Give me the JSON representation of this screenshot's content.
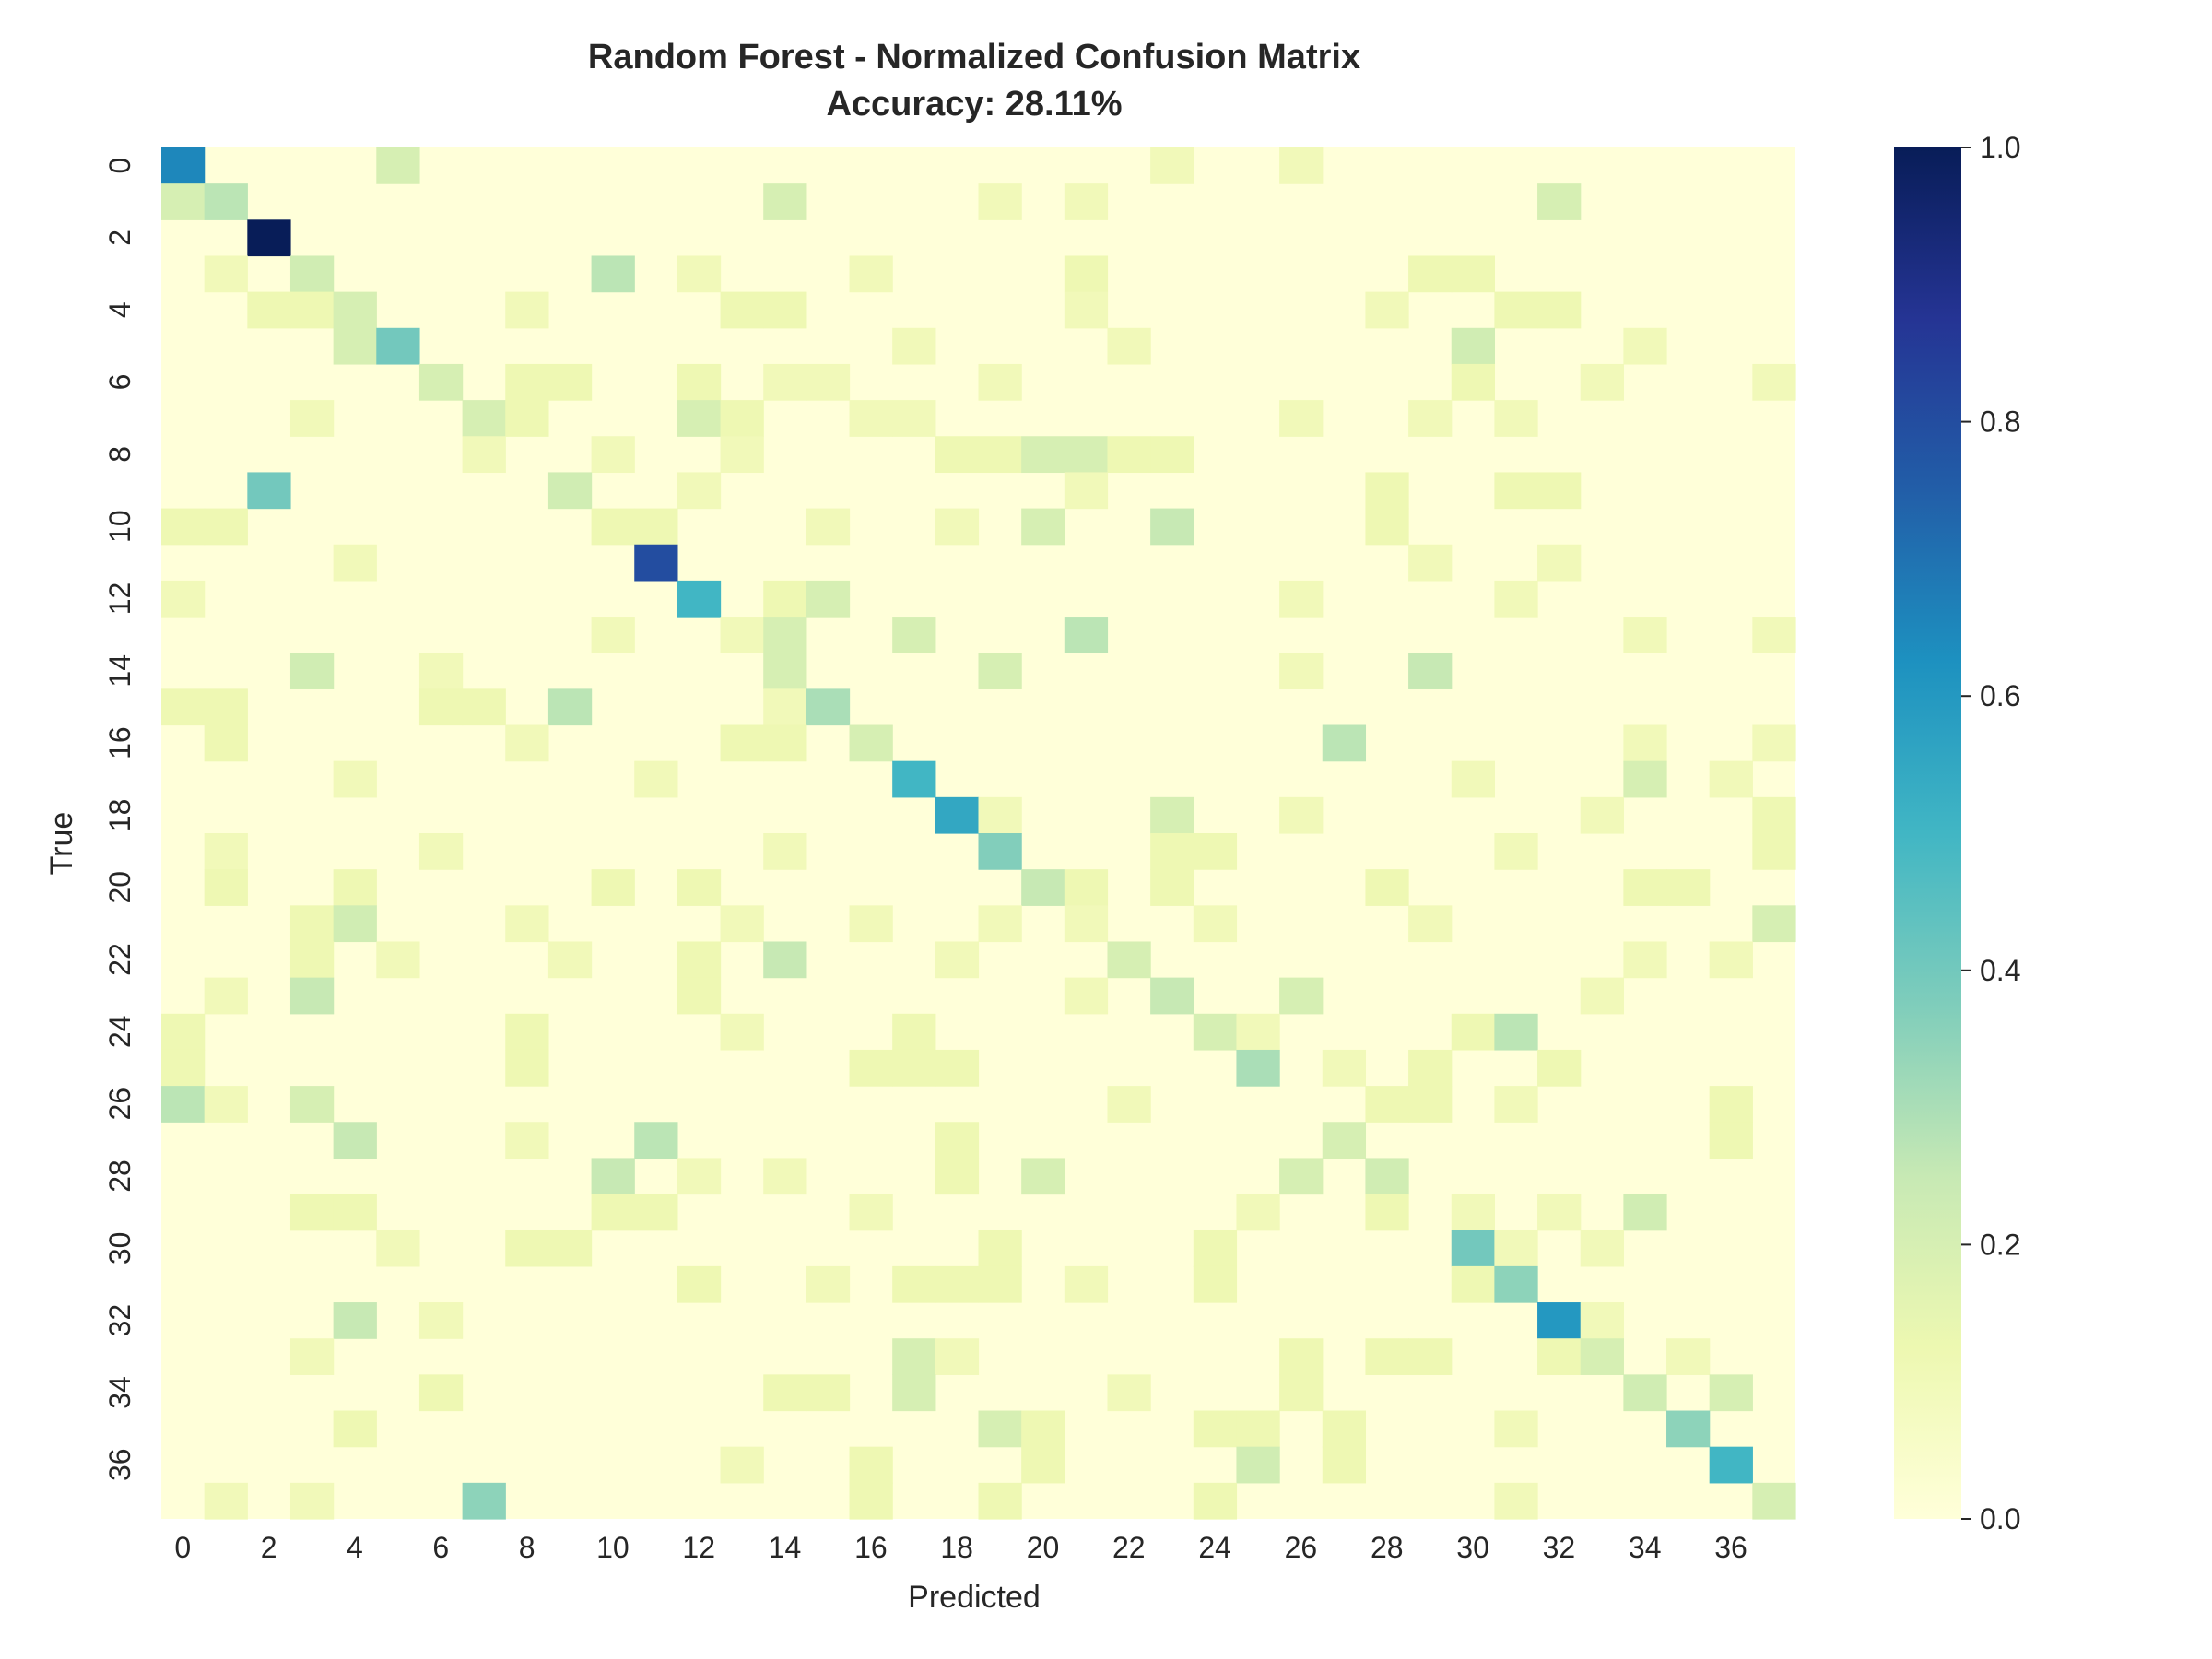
{
  "chart_data": {
    "type": "heatmap",
    "title": "Random Forest - Normalized Confusion Matrix",
    "subtitle": "Accuracy: 28.11%",
    "xlabel": "Predicted",
    "ylabel": "True",
    "n_classes": 38,
    "x_tick_labels": [
      "0",
      "2",
      "4",
      "6",
      "8",
      "10",
      "12",
      "14",
      "16",
      "18",
      "20",
      "22",
      "24",
      "26",
      "28",
      "30",
      "32",
      "34",
      "36"
    ],
    "y_tick_labels": [
      "0",
      "2",
      "4",
      "6",
      "8",
      "10",
      "12",
      "14",
      "16",
      "18",
      "20",
      "22",
      "24",
      "26",
      "28",
      "30",
      "32",
      "34",
      "36"
    ],
    "colorbar": {
      "min": 0.0,
      "max": 1.0,
      "ticks": [
        "0.0",
        "0.2",
        "0.4",
        "0.6",
        "0.8",
        "1.0"
      ],
      "colormap": "YlGnBu"
    },
    "cells": [
      [
        0,
        0,
        0.65
      ],
      [
        0,
        5,
        0.2
      ],
      [
        0,
        23,
        0.1
      ],
      [
        0,
        26,
        0.1
      ],
      [
        1,
        0,
        0.2
      ],
      [
        1,
        1,
        0.27
      ],
      [
        1,
        14,
        0.2
      ],
      [
        1,
        19,
        0.1
      ],
      [
        1,
        21,
        0.1
      ],
      [
        1,
        32,
        0.2
      ],
      [
        2,
        2,
        1.0
      ],
      [
        3,
        1,
        0.1
      ],
      [
        3,
        3,
        0.22
      ],
      [
        3,
        10,
        0.27
      ],
      [
        3,
        12,
        0.1
      ],
      [
        3,
        16,
        0.1
      ],
      [
        3,
        21,
        0.12
      ],
      [
        3,
        29,
        0.12
      ],
      [
        3,
        30,
        0.12
      ],
      [
        4,
        2,
        0.12
      ],
      [
        4,
        3,
        0.12
      ],
      [
        4,
        4,
        0.2
      ],
      [
        4,
        8,
        0.1
      ],
      [
        4,
        13,
        0.12
      ],
      [
        4,
        14,
        0.12
      ],
      [
        4,
        21,
        0.1
      ],
      [
        4,
        28,
        0.1
      ],
      [
        4,
        31,
        0.12
      ],
      [
        4,
        32,
        0.12
      ],
      [
        5,
        4,
        0.2
      ],
      [
        5,
        5,
        0.4
      ],
      [
        5,
        17,
        0.1
      ],
      [
        5,
        22,
        0.1
      ],
      [
        5,
        30,
        0.22
      ],
      [
        5,
        34,
        0.1
      ],
      [
        6,
        6,
        0.2
      ],
      [
        6,
        8,
        0.12
      ],
      [
        6,
        9,
        0.12
      ],
      [
        6,
        12,
        0.12
      ],
      [
        6,
        14,
        0.1
      ],
      [
        6,
        15,
        0.1
      ],
      [
        6,
        19,
        0.1
      ],
      [
        6,
        30,
        0.12
      ],
      [
        6,
        33,
        0.1
      ],
      [
        6,
        37,
        0.1
      ],
      [
        7,
        3,
        0.1
      ],
      [
        7,
        7,
        0.2
      ],
      [
        7,
        8,
        0.12
      ],
      [
        7,
        12,
        0.2
      ],
      [
        7,
        13,
        0.12
      ],
      [
        7,
        16,
        0.1
      ],
      [
        7,
        17,
        0.1
      ],
      [
        7,
        26,
        0.1
      ],
      [
        7,
        29,
        0.1
      ],
      [
        7,
        31,
        0.1
      ],
      [
        8,
        7,
        0.1
      ],
      [
        8,
        10,
        0.1
      ],
      [
        8,
        13,
        0.1
      ],
      [
        8,
        18,
        0.12
      ],
      [
        8,
        19,
        0.12
      ],
      [
        8,
        20,
        0.2
      ],
      [
        8,
        21,
        0.2
      ],
      [
        8,
        22,
        0.12
      ],
      [
        8,
        23,
        0.12
      ],
      [
        9,
        2,
        0.4
      ],
      [
        9,
        9,
        0.22
      ],
      [
        9,
        12,
        0.1
      ],
      [
        9,
        21,
        0.1
      ],
      [
        9,
        28,
        0.12
      ],
      [
        9,
        31,
        0.12
      ],
      [
        9,
        32,
        0.12
      ],
      [
        10,
        0,
        0.12
      ],
      [
        10,
        1,
        0.12
      ],
      [
        10,
        10,
        0.12
      ],
      [
        10,
        11,
        0.12
      ],
      [
        10,
        15,
        0.1
      ],
      [
        10,
        18,
        0.1
      ],
      [
        10,
        20,
        0.2
      ],
      [
        10,
        23,
        0.25
      ],
      [
        10,
        28,
        0.12
      ],
      [
        11,
        4,
        0.1
      ],
      [
        11,
        11,
        0.8
      ],
      [
        11,
        29,
        0.1
      ],
      [
        11,
        32,
        0.1
      ],
      [
        12,
        0,
        0.1
      ],
      [
        12,
        12,
        0.5
      ],
      [
        12,
        14,
        0.12
      ],
      [
        12,
        15,
        0.2
      ],
      [
        12,
        26,
        0.1
      ],
      [
        12,
        31,
        0.1
      ],
      [
        13,
        10,
        0.1
      ],
      [
        13,
        13,
        0.1
      ],
      [
        13,
        14,
        0.2
      ],
      [
        13,
        17,
        0.2
      ],
      [
        13,
        21,
        0.27
      ],
      [
        13,
        34,
        0.1
      ],
      [
        13,
        37,
        0.1
      ],
      [
        14,
        3,
        0.22
      ],
      [
        14,
        6,
        0.1
      ],
      [
        14,
        14,
        0.2
      ],
      [
        14,
        19,
        0.2
      ],
      [
        14,
        26,
        0.1
      ],
      [
        14,
        29,
        0.25
      ],
      [
        15,
        0,
        0.12
      ],
      [
        15,
        1,
        0.12
      ],
      [
        15,
        6,
        0.12
      ],
      [
        15,
        7,
        0.12
      ],
      [
        15,
        9,
        0.27
      ],
      [
        15,
        14,
        0.1
      ],
      [
        15,
        15,
        0.3
      ],
      [
        16,
        1,
        0.12
      ],
      [
        16,
        8,
        0.1
      ],
      [
        16,
        13,
        0.12
      ],
      [
        16,
        14,
        0.12
      ],
      [
        16,
        16,
        0.2
      ],
      [
        16,
        27,
        0.27
      ],
      [
        16,
        34,
        0.1
      ],
      [
        16,
        37,
        0.1
      ],
      [
        17,
        4,
        0.1
      ],
      [
        17,
        11,
        0.1
      ],
      [
        17,
        17,
        0.5
      ],
      [
        17,
        30,
        0.1
      ],
      [
        17,
        34,
        0.2
      ],
      [
        17,
        36,
        0.1
      ],
      [
        18,
        18,
        0.55
      ],
      [
        18,
        19,
        0.1
      ],
      [
        18,
        23,
        0.2
      ],
      [
        18,
        26,
        0.1
      ],
      [
        18,
        33,
        0.1
      ],
      [
        18,
        37,
        0.12
      ],
      [
        19,
        1,
        0.1
      ],
      [
        19,
        6,
        0.1
      ],
      [
        19,
        14,
        0.1
      ],
      [
        19,
        19,
        0.37
      ],
      [
        19,
        23,
        0.12
      ],
      [
        19,
        24,
        0.12
      ],
      [
        19,
        31,
        0.1
      ],
      [
        19,
        37,
        0.12
      ],
      [
        20,
        1,
        0.12
      ],
      [
        20,
        4,
        0.12
      ],
      [
        20,
        10,
        0.12
      ],
      [
        20,
        12,
        0.12
      ],
      [
        20,
        20,
        0.25
      ],
      [
        20,
        21,
        0.12
      ],
      [
        20,
        23,
        0.12
      ],
      [
        20,
        28,
        0.12
      ],
      [
        20,
        34,
        0.12
      ],
      [
        20,
        35,
        0.12
      ],
      [
        21,
        3,
        0.12
      ],
      [
        21,
        4,
        0.22
      ],
      [
        21,
        8,
        0.1
      ],
      [
        21,
        13,
        0.1
      ],
      [
        21,
        16,
        0.1
      ],
      [
        21,
        19,
        0.1
      ],
      [
        21,
        21,
        0.1
      ],
      [
        21,
        24,
        0.1
      ],
      [
        21,
        29,
        0.1
      ],
      [
        21,
        37,
        0.2
      ],
      [
        22,
        3,
        0.12
      ],
      [
        22,
        5,
        0.1
      ],
      [
        22,
        9,
        0.1
      ],
      [
        22,
        12,
        0.12
      ],
      [
        22,
        14,
        0.25
      ],
      [
        22,
        18,
        0.1
      ],
      [
        22,
        22,
        0.2
      ],
      [
        22,
        34,
        0.1
      ],
      [
        22,
        36,
        0.1
      ],
      [
        23,
        1,
        0.1
      ],
      [
        23,
        3,
        0.25
      ],
      [
        23,
        12,
        0.12
      ],
      [
        23,
        21,
        0.1
      ],
      [
        23,
        23,
        0.25
      ],
      [
        23,
        26,
        0.2
      ],
      [
        23,
        33,
        0.1
      ],
      [
        24,
        0,
        0.12
      ],
      [
        24,
        8,
        0.12
      ],
      [
        24,
        13,
        0.1
      ],
      [
        24,
        17,
        0.12
      ],
      [
        24,
        24,
        0.2
      ],
      [
        24,
        25,
        0.1
      ],
      [
        24,
        30,
        0.12
      ],
      [
        24,
        31,
        0.27
      ],
      [
        25,
        0,
        0.12
      ],
      [
        25,
        8,
        0.12
      ],
      [
        25,
        16,
        0.12
      ],
      [
        25,
        17,
        0.12
      ],
      [
        25,
        18,
        0.12
      ],
      [
        25,
        25,
        0.3
      ],
      [
        25,
        27,
        0.1
      ],
      [
        25,
        29,
        0.12
      ],
      [
        25,
        32,
        0.12
      ],
      [
        26,
        0,
        0.27
      ],
      [
        26,
        1,
        0.1
      ],
      [
        26,
        3,
        0.2
      ],
      [
        26,
        22,
        0.1
      ],
      [
        26,
        28,
        0.12
      ],
      [
        26,
        29,
        0.12
      ],
      [
        26,
        31,
        0.1
      ],
      [
        26,
        36,
        0.12
      ],
      [
        27,
        4,
        0.25
      ],
      [
        27,
        8,
        0.1
      ],
      [
        27,
        11,
        0.27
      ],
      [
        27,
        18,
        0.12
      ],
      [
        27,
        27,
        0.2
      ],
      [
        27,
        36,
        0.12
      ],
      [
        28,
        10,
        0.25
      ],
      [
        28,
        12,
        0.1
      ],
      [
        28,
        14,
        0.1
      ],
      [
        28,
        18,
        0.12
      ],
      [
        28,
        20,
        0.2
      ],
      [
        28,
        26,
        0.2
      ],
      [
        28,
        28,
        0.22
      ],
      [
        29,
        3,
        0.12
      ],
      [
        29,
        4,
        0.12
      ],
      [
        29,
        10,
        0.12
      ],
      [
        29,
        11,
        0.12
      ],
      [
        29,
        16,
        0.1
      ],
      [
        29,
        25,
        0.1
      ],
      [
        29,
        28,
        0.12
      ],
      [
        29,
        30,
        0.1
      ],
      [
        29,
        32,
        0.1
      ],
      [
        29,
        34,
        0.22
      ],
      [
        30,
        5,
        0.1
      ],
      [
        30,
        8,
        0.12
      ],
      [
        30,
        9,
        0.12
      ],
      [
        30,
        19,
        0.12
      ],
      [
        30,
        24,
        0.12
      ],
      [
        30,
        30,
        0.4
      ],
      [
        30,
        31,
        0.1
      ],
      [
        30,
        33,
        0.1
      ],
      [
        31,
        12,
        0.12
      ],
      [
        31,
        15,
        0.1
      ],
      [
        31,
        17,
        0.12
      ],
      [
        31,
        18,
        0.12
      ],
      [
        31,
        19,
        0.12
      ],
      [
        31,
        21,
        0.1
      ],
      [
        31,
        24,
        0.12
      ],
      [
        31,
        30,
        0.12
      ],
      [
        31,
        31,
        0.35
      ],
      [
        32,
        4,
        0.25
      ],
      [
        32,
        6,
        0.1
      ],
      [
        32,
        32,
        0.6
      ],
      [
        32,
        33,
        0.1
      ],
      [
        33,
        3,
        0.1
      ],
      [
        33,
        17,
        0.2
      ],
      [
        33,
        18,
        0.1
      ],
      [
        33,
        26,
        0.12
      ],
      [
        33,
        28,
        0.12
      ],
      [
        33,
        29,
        0.12
      ],
      [
        33,
        32,
        0.12
      ],
      [
        33,
        33,
        0.2
      ],
      [
        33,
        35,
        0.1
      ],
      [
        34,
        6,
        0.12
      ],
      [
        34,
        14,
        0.12
      ],
      [
        34,
        15,
        0.12
      ],
      [
        34,
        17,
        0.2
      ],
      [
        34,
        22,
        0.1
      ],
      [
        34,
        26,
        0.12
      ],
      [
        34,
        34,
        0.22
      ],
      [
        34,
        36,
        0.2
      ],
      [
        35,
        4,
        0.12
      ],
      [
        35,
        19,
        0.2
      ],
      [
        35,
        20,
        0.12
      ],
      [
        35,
        24,
        0.12
      ],
      [
        35,
        25,
        0.12
      ],
      [
        35,
        27,
        0.12
      ],
      [
        35,
        31,
        0.1
      ],
      [
        35,
        35,
        0.35
      ],
      [
        36,
        13,
        0.1
      ],
      [
        36,
        16,
        0.12
      ],
      [
        36,
        20,
        0.12
      ],
      [
        36,
        25,
        0.22
      ],
      [
        36,
        27,
        0.12
      ],
      [
        36,
        36,
        0.5
      ],
      [
        37,
        1,
        0.1
      ],
      [
        37,
        3,
        0.1
      ],
      [
        37,
        7,
        0.35
      ],
      [
        37,
        16,
        0.12
      ],
      [
        37,
        19,
        0.12
      ],
      [
        37,
        24,
        0.12
      ],
      [
        37,
        31,
        0.1
      ],
      [
        37,
        37,
        0.2
      ]
    ]
  }
}
